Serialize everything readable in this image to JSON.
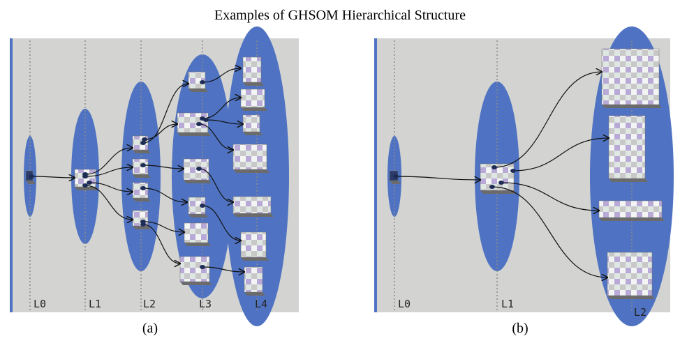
{
  "title": "Examples of GHSOM Hierarchical Structure",
  "panels": [
    {
      "caption": "(a)",
      "layers": [
        "L0",
        "L1",
        "L2",
        "L3",
        "L4"
      ]
    },
    {
      "caption": "(b)",
      "layers": [
        "L0",
        "L1",
        "L2"
      ]
    }
  ]
}
